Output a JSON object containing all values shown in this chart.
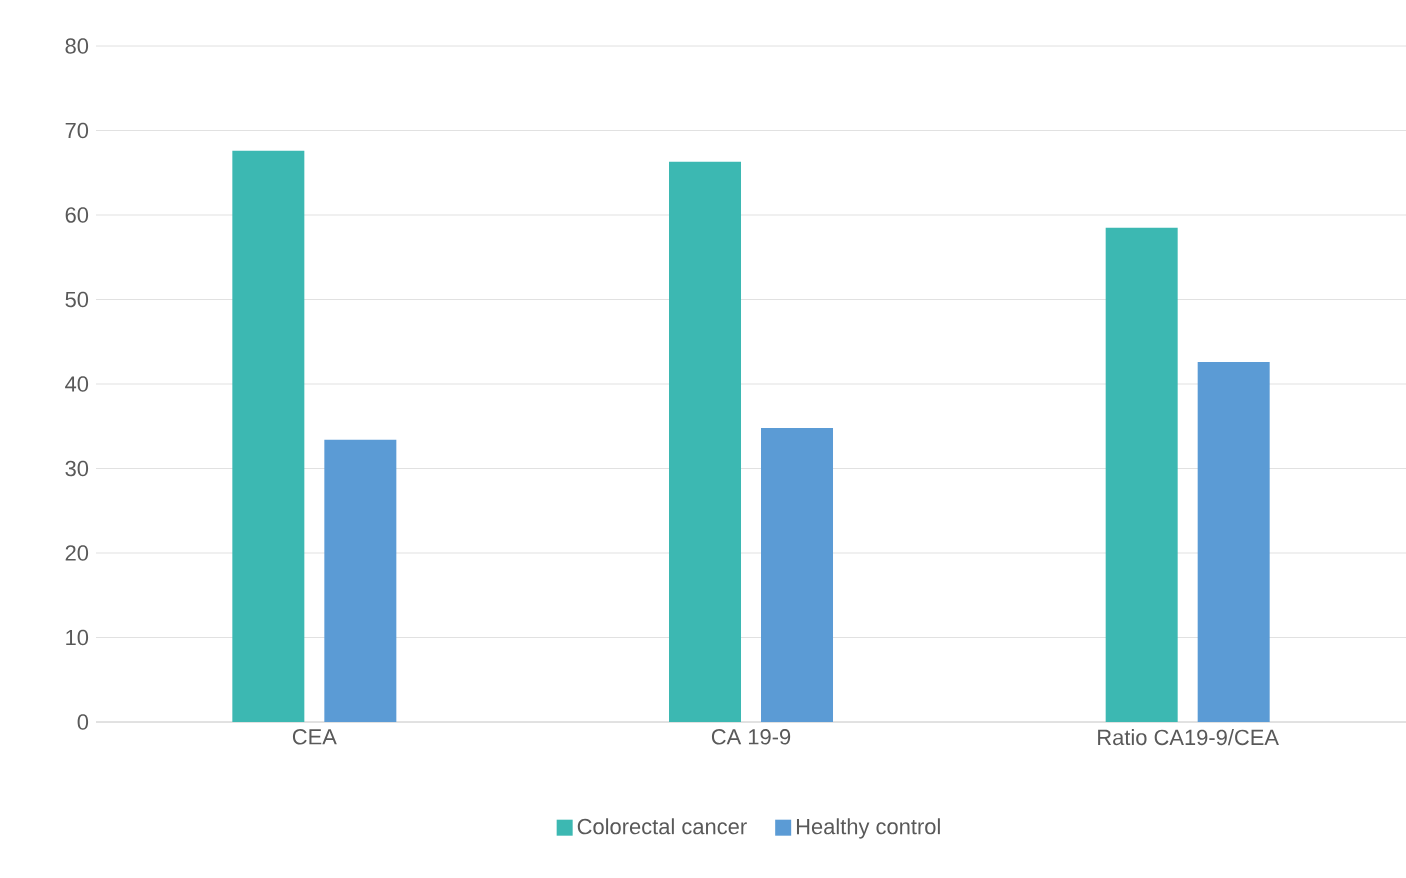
{
  "chart_data": {
    "type": "bar",
    "categories": [
      "CEA",
      "CA 19-9",
      "Ratio CA19-9/CEA"
    ],
    "series": [
      {
        "name": "Colorectal cancer",
        "color": "#3cb8b2",
        "values": [
          67.6,
          66.3,
          58.5
        ]
      },
      {
        "name": "Healthy control",
        "color": "#5b9bd5",
        "values": [
          33.4,
          34.8,
          42.6
        ]
      }
    ],
    "ylim": [
      0,
      80
    ],
    "yticks": [
      0,
      10,
      20,
      30,
      40,
      50,
      60,
      70,
      80
    ],
    "grid": "y",
    "legend": "bottom"
  }
}
